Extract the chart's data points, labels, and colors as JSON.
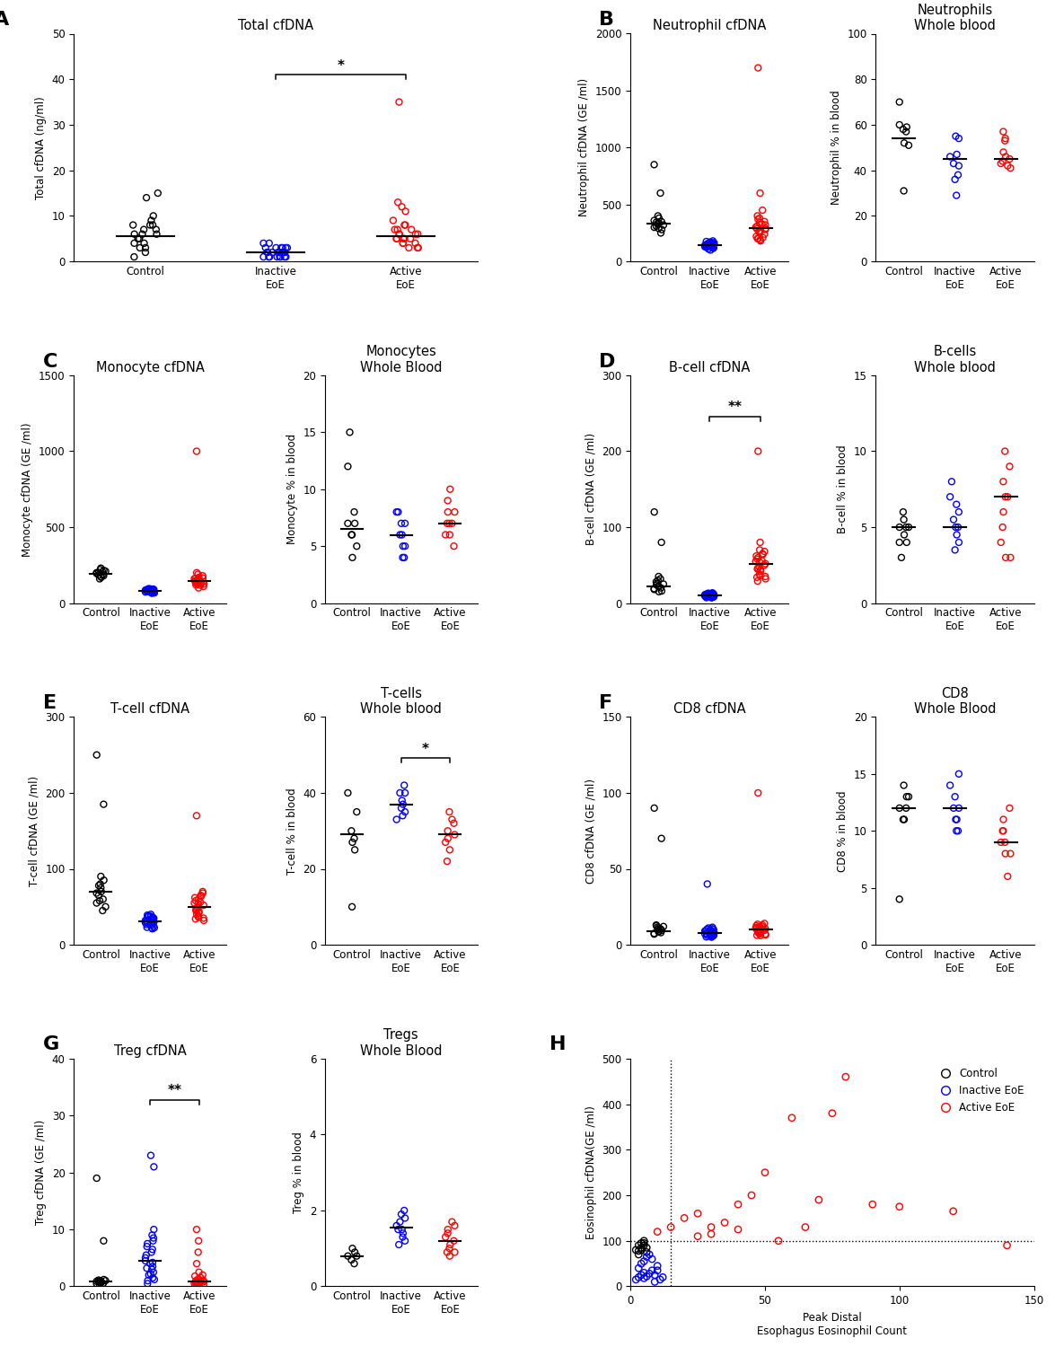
{
  "panel_A": {
    "title": "Total cfDNA",
    "ylabel": "Total cfDNA (ng/ml)",
    "ylim": [
      0,
      50
    ],
    "yticks": [
      0,
      10,
      20,
      30,
      40,
      50
    ],
    "control": [
      6,
      8,
      7,
      9,
      15,
      14,
      3,
      4,
      5,
      2,
      8,
      10,
      6,
      1,
      3,
      7,
      5,
      4,
      6,
      8
    ],
    "inactive": [
      2,
      1,
      3,
      2,
      4,
      1,
      2,
      3,
      1,
      2,
      1,
      3,
      2,
      1,
      2,
      1,
      3,
      2,
      1,
      4,
      2,
      3,
      1,
      2,
      3
    ],
    "active": [
      35,
      8,
      5,
      6,
      4,
      7,
      9,
      3,
      5,
      8,
      6,
      4,
      7,
      12,
      5,
      3,
      6,
      11,
      4,
      5,
      7,
      6,
      3,
      5,
      13
    ],
    "control_median": 5.5,
    "inactive_median": 2,
    "active_median": 5.5,
    "sig_bar": [
      1,
      2,
      "*"
    ]
  },
  "panel_B_left": {
    "title": "Neutrophil cfDNA",
    "ylabel": "Neutrophil cfDNA (GE /ml)",
    "ylim": [
      0,
      2000
    ],
    "yticks": [
      0,
      500,
      1000,
      1500,
      2000
    ],
    "control": [
      300,
      350,
      400,
      250,
      320,
      380,
      290,
      360,
      310,
      340,
      600,
      280,
      330,
      850,
      345
    ],
    "inactive": [
      100,
      150,
      120,
      180,
      130,
      160,
      110,
      170,
      140,
      125,
      155,
      145,
      135,
      115,
      165,
      142,
      128,
      158,
      138,
      148,
      118,
      162,
      132,
      175,
      122
    ],
    "active": [
      1700,
      600,
      250,
      200,
      350,
      400,
      300,
      280,
      450,
      180,
      320,
      380,
      220,
      260,
      310,
      290,
      240,
      270,
      340,
      190,
      210,
      370,
      330,
      285,
      200
    ],
    "control_median": 335,
    "inactive_median": 142,
    "active_median": 295
  },
  "panel_B_right": {
    "title": "Neutrophils\nWhole blood",
    "ylabel": "Neutrophil % in blood",
    "ylim": [
      0,
      100
    ],
    "yticks": [
      0,
      20,
      40,
      60,
      80,
      100
    ],
    "control": [
      60,
      59,
      58,
      57,
      51,
      52,
      31,
      70
    ],
    "inactive": [
      55,
      54,
      42,
      38,
      46,
      47,
      43,
      36,
      29
    ],
    "active": [
      57,
      54,
      53,
      48,
      45,
      44,
      43,
      41,
      42,
      46
    ],
    "control_median": 54,
    "inactive_median": 45,
    "active_median": 45
  },
  "panel_C_left": {
    "title": "Monocyte cfDNA",
    "ylabel": "Monocyte cfDNA (GE /ml)",
    "ylim": [
      0,
      1500
    ],
    "yticks": [
      0,
      500,
      1000,
      1500
    ],
    "control": [
      200,
      180,
      220,
      190,
      210,
      170,
      230,
      195,
      185,
      175,
      205,
      215,
      160,
      198,
      202
    ],
    "inactive": [
      80,
      70,
      90,
      75,
      85,
      65,
      95,
      72,
      88,
      78,
      82,
      68,
      92,
      76,
      86,
      73,
      84,
      69,
      91,
      77,
      83,
      67,
      93,
      79,
      87
    ],
    "active": [
      1000,
      100,
      150,
      200,
      180,
      120,
      160,
      140,
      130,
      170,
      110,
      190,
      145,
      155,
      135,
      125,
      165,
      142,
      128,
      158,
      138,
      148,
      118,
      162,
      132
    ],
    "control_median": 195,
    "inactive_median": 80,
    "active_median": 145
  },
  "panel_C_right": {
    "title": "Monocytes\nWhole Blood",
    "ylabel": "Monocyte % in blood",
    "ylim": [
      0,
      20
    ],
    "yticks": [
      0,
      5,
      10,
      15,
      20
    ],
    "control": [
      12,
      7,
      6,
      8,
      5,
      4,
      6,
      7,
      15
    ],
    "inactive": [
      6,
      5,
      7,
      4,
      8,
      5,
      6,
      7,
      4,
      8
    ],
    "active": [
      9,
      6,
      7,
      8,
      5,
      7,
      6,
      8,
      7,
      10
    ],
    "control_median": 6.5,
    "inactive_median": 6,
    "active_median": 7
  },
  "panel_D_left": {
    "title": "B-cell cfDNA",
    "ylabel": "B-cell cfDNA (GE /ml)",
    "ylim": [
      0,
      300
    ],
    "yticks": [
      0,
      100,
      200,
      300
    ],
    "control": [
      120,
      80,
      30,
      20,
      25,
      15,
      35,
      18,
      28,
      22,
      32,
      16,
      26,
      19,
      24
    ],
    "inactive": [
      10,
      8,
      12,
      9,
      11,
      7,
      13,
      8.5,
      10.5,
      9.5,
      11.5,
      7.5,
      12.5,
      8.8,
      10.2,
      9.2,
      11.2,
      7.8,
      12.2,
      8.2,
      10.8,
      9.8,
      11.8,
      7.2,
      13.5
    ],
    "active": [
      200,
      80,
      70,
      60,
      50,
      45,
      55,
      35,
      65,
      42,
      52,
      38,
      62,
      48,
      58,
      32,
      68,
      44,
      54,
      36,
      64,
      46,
      56,
      34,
      29
    ],
    "control_median": 22,
    "inactive_median": 10,
    "active_median": 52,
    "sig_bar": [
      1,
      2,
      "**"
    ]
  },
  "panel_D_right": {
    "title": "B-cells\nWhole blood",
    "ylabel": "B-cell % in blood",
    "ylim": [
      0,
      15
    ],
    "yticks": [
      0,
      5,
      10,
      15
    ],
    "control": [
      5,
      4,
      6,
      5,
      5,
      4.5,
      5.5,
      4,
      3
    ],
    "inactive": [
      5,
      4,
      6,
      5,
      7,
      4.5,
      5.5,
      3.5,
      6.5,
      8
    ],
    "active": [
      8,
      7,
      10,
      6,
      9,
      5,
      4,
      3,
      7,
      3
    ],
    "control_median": 5,
    "inactive_median": 5,
    "active_median": 7
  },
  "panel_E_left": {
    "title": "T-cell cfDNA",
    "ylabel": "T-cell cfDNA (GE /ml)",
    "ylim": [
      0,
      300
    ],
    "yticks": [
      0,
      100,
      200,
      300
    ],
    "control": [
      250,
      185,
      80,
      60,
      50,
      70,
      90,
      55,
      65,
      75,
      45,
      85,
      58,
      68,
      78
    ],
    "inactive": [
      40,
      30,
      35,
      28,
      32,
      22,
      38,
      27,
      33,
      23,
      37,
      26,
      34,
      24,
      36,
      29,
      31,
      21,
      39,
      28.5,
      32.5,
      22.5,
      37.5,
      26.5,
      34.5
    ],
    "active": [
      170,
      60,
      50,
      40,
      70,
      45,
      55,
      35,
      65,
      42,
      52,
      38,
      62,
      48,
      58,
      32,
      68,
      44,
      54,
      36,
      64,
      46,
      56,
      34,
      47
    ],
    "control_median": 70,
    "inactive_median": 31,
    "active_median": 50
  },
  "panel_E_right": {
    "title": "T-cells\nWhole blood",
    "ylabel": "T-cell % in blood",
    "ylim": [
      0,
      60
    ],
    "yticks": [
      0,
      20,
      40,
      60
    ],
    "control": [
      40,
      25,
      30,
      28,
      35,
      27,
      10
    ],
    "inactive": [
      38,
      40,
      35,
      42,
      33,
      37,
      40,
      36,
      34
    ],
    "active": [
      30,
      25,
      35,
      28,
      32,
      22,
      27,
      29,
      33
    ],
    "control_median": 29,
    "inactive_median": 37,
    "active_median": 29,
    "sig_bar": [
      1,
      2,
      "*"
    ]
  },
  "panel_F_left": {
    "title": "CD8 cfDNA",
    "ylabel": "CD8 cfDNA (GE /ml)",
    "ylim": [
      0,
      150
    ],
    "yticks": [
      0,
      50,
      100,
      150
    ],
    "control": [
      90,
      70,
      10,
      8,
      12,
      9,
      11,
      7,
      13,
      8.5,
      10.5,
      9.5,
      11.5,
      7.5,
      12.5
    ],
    "inactive": [
      8,
      6,
      10,
      7,
      9,
      5,
      11,
      6.5,
      8.5,
      7.5,
      40,
      5.5,
      10.5,
      6.8,
      8.2,
      7.2,
      9.2,
      5.8,
      10.2,
      6.2,
      8.8,
      7.8,
      9.8,
      5.2,
      11.5
    ],
    "active": [
      100,
      10,
      12,
      8,
      14,
      9,
      11,
      7,
      13,
      6,
      10.5,
      8.5,
      12.5,
      7.5,
      11.5,
      6.5,
      9.5,
      8.2,
      11.2,
      7.2,
      10.2,
      9.2,
      12.2,
      6.2,
      13.5
    ],
    "control_median": 9,
    "inactive_median": 8,
    "active_median": 10
  },
  "panel_F_right": {
    "title": "CD8\nWhole Blood",
    "ylabel": "CD8 % in blood",
    "ylim": [
      0,
      20
    ],
    "yticks": [
      0,
      5,
      10,
      15,
      20
    ],
    "control": [
      12,
      13,
      11,
      12,
      13,
      11,
      14,
      4
    ],
    "inactive": [
      11,
      12,
      15,
      10,
      14,
      11,
      12,
      13,
      10
    ],
    "active": [
      10,
      8,
      9,
      11,
      12,
      10,
      9,
      8,
      6
    ],
    "control_median": 12,
    "inactive_median": 12,
    "active_median": 9
  },
  "panel_G_left": {
    "title": "Treg cfDNA",
    "ylabel": "Treg cfDNA (GE /ml)",
    "ylim": [
      0,
      40
    ],
    "yticks": [
      0,
      10,
      20,
      30,
      40
    ],
    "control": [
      19,
      8,
      1,
      0.5,
      1,
      0.8,
      0.6,
      0.9,
      1.1,
      0.7,
      0.4,
      1.2,
      0.3,
      0.5,
      0.8
    ],
    "inactive": [
      23,
      21,
      10,
      8,
      5,
      3,
      2,
      4,
      6,
      7,
      1,
      9,
      1.5,
      2.5,
      3.5,
      4.5,
      5.5,
      6.5,
      7.5,
      0.5,
      8.5,
      1.2,
      2.2,
      3.2,
      4.2
    ],
    "active": [
      10,
      8,
      6,
      4,
      2,
      1,
      0.5,
      0.8,
      1.5,
      2.5,
      0.3,
      0.6,
      1.8,
      0.4,
      0.7,
      0.9,
      1.1,
      0.2,
      1.3,
      0.6,
      0.8,
      0.5,
      1.0,
      0.7,
      0.4
    ],
    "control_median": 0.8,
    "inactive_median": 4.5,
    "active_median": 0.8,
    "sig_bar": [
      1,
      2,
      "**"
    ]
  },
  "panel_G_right": {
    "title": "Tregs\nWhole Blood",
    "ylabel": "Treg % in blood",
    "ylim": [
      0,
      6
    ],
    "yticks": [
      0,
      2,
      4,
      6
    ],
    "control": [
      0.8,
      0.9,
      0.7,
      0.6,
      0.8,
      1.0
    ],
    "inactive": [
      1.5,
      1.8,
      1.2,
      2.0,
      1.6,
      1.4,
      1.7,
      1.9,
      1.3,
      1.5,
      1.1
    ],
    "active": [
      1.4,
      0.8,
      1.0,
      1.5,
      1.2,
      0.9,
      1.3,
      1.6,
      1.7,
      1.1,
      0.9
    ],
    "control_median": 0.8,
    "inactive_median": 1.55,
    "active_median": 1.2
  },
  "panel_H": {
    "xlabel": "Peak Distal\nEsophagus Eosinophil Count",
    "ylabel": "Eosinophil cfDNA(GE /ml)",
    "xlim": [
      0,
      150
    ],
    "ylim": [
      0,
      500
    ],
    "xticks": [
      0,
      50,
      100,
      150
    ],
    "yticks": [
      0,
      100,
      200,
      300,
      400,
      500
    ],
    "vline": 15,
    "hline": 100,
    "control_x": [
      2,
      3,
      4,
      5,
      6,
      5,
      3,
      4,
      6,
      5,
      4,
      3
    ],
    "control_y": [
      80,
      90,
      85,
      95,
      75,
      100,
      70,
      80,
      85,
      90,
      95,
      78
    ],
    "inactive_x": [
      2,
      3,
      4,
      5,
      5,
      6,
      7,
      8,
      9,
      10,
      5,
      6,
      7,
      3,
      4,
      8,
      9,
      10,
      11,
      12
    ],
    "inactive_y": [
      15,
      20,
      25,
      30,
      18,
      22,
      28,
      35,
      10,
      45,
      55,
      65,
      70,
      40,
      50,
      60,
      25,
      35,
      15,
      20
    ],
    "active_x": [
      10,
      15,
      20,
      25,
      30,
      35,
      40,
      45,
      50,
      55,
      60,
      65,
      70,
      75,
      80,
      90,
      100,
      120,
      140,
      25,
      30,
      40
    ],
    "active_y": [
      120,
      130,
      150,
      160,
      130,
      140,
      180,
      200,
      250,
      100,
      370,
      130,
      190,
      380,
      460,
      180,
      175,
      165,
      90,
      110,
      115,
      125
    ],
    "legend": [
      "Control",
      "Inactive EoE",
      "Active EoE"
    ],
    "legend_colors": [
      "#000000",
      "#0000FF",
      "#FF0000"
    ]
  },
  "colors": {
    "control": "#000000",
    "inactive": "#0000FF",
    "active": "#FF0000"
  }
}
